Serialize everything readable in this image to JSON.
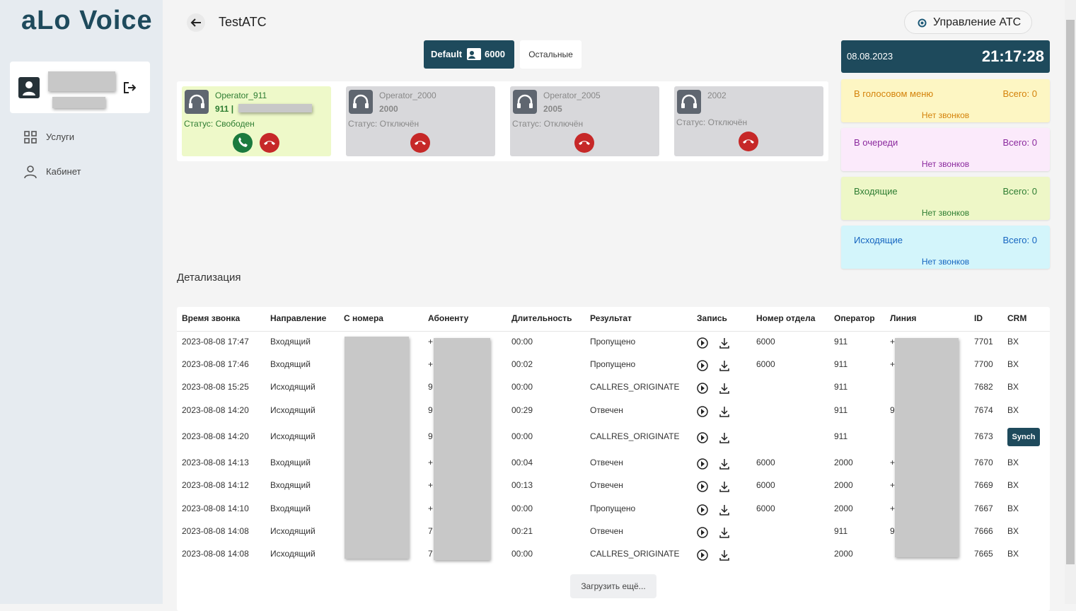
{
  "logo": "aLo Voice",
  "sidebar": {
    "menu": [
      "Услуги",
      "Кабинет"
    ]
  },
  "header": {
    "title": "TestATC",
    "manage_button": "Управление АТС"
  },
  "tabs": {
    "default": "Default",
    "default_count": "6000",
    "other": "Остальные"
  },
  "operators": [
    {
      "name": "Operator_911",
      "ext": "911 |",
      "status": "Статус: Свободен",
      "online": true
    },
    {
      "name": "Operator_2000",
      "ext": "2000",
      "status": "Статус: Отключён",
      "online": false
    },
    {
      "name": "Operator_2005",
      "ext": "2005",
      "status": "Статус: Отключён",
      "online": false
    },
    {
      "name": "2002",
      "ext": null,
      "status": "Статус: Отключён",
      "online": false
    }
  ],
  "clock": {
    "date": "08.08.2023",
    "time": "21:17:28"
  },
  "queues": [
    {
      "label": "В голосовом меню",
      "total": "Всего: 0",
      "empty": "Нет звонков",
      "color": "#d4820a",
      "bg": "#fdf6c3"
    },
    {
      "label": "В очереди",
      "total": "Всего: 0",
      "empty": "Нет звонков",
      "color": "#8b2a9e",
      "bg": "#fbeafb"
    },
    {
      "label": "Входящие",
      "total": "Всего: 0",
      "empty": "Нет звонков",
      "color": "#2e7d32",
      "bg": "#eef7c7"
    },
    {
      "label": "Исходящие",
      "total": "Всего: 0",
      "empty": "Нет звонков",
      "color": "#1565c0",
      "bg": "#d3f5fb"
    }
  ],
  "details": {
    "title": "Детализация",
    "columns": [
      "Время звонка",
      "Направление",
      "С номера",
      "Абоненту",
      "Длительность",
      "Результат",
      "Запись",
      "Номер отдела",
      "Оператор",
      "Линия",
      "ID",
      "CRM"
    ],
    "rows": [
      [
        "2023-08-08 17:47",
        "Входящий",
        null,
        "+",
        "00:00",
        "Пропущено",
        null,
        "6000",
        "911",
        "+",
        "7701",
        "BX"
      ],
      [
        "2023-08-08 17:46",
        "Входящий",
        null,
        "+",
        "00:02",
        "Пропущено",
        null,
        "6000",
        "911",
        "+",
        "7700",
        "BX"
      ],
      [
        "2023-08-08 15:25",
        "Исходящий",
        null,
        "9",
        "00:00",
        "CALLRES_ORIGINATE",
        null,
        null,
        "911",
        null,
        "7682",
        "BX"
      ],
      [
        "2023-08-08 14:20",
        "Исходящий",
        null,
        "9",
        "00:29",
        "Отвечен",
        null,
        null,
        "911",
        "9",
        "7674",
        "BX"
      ],
      [
        "2023-08-08 14:20",
        "Исходящий",
        null,
        "9",
        "00:00",
        "CALLRES_ORIGINATE",
        null,
        null,
        "911",
        null,
        "7673",
        "Synch"
      ],
      [
        "2023-08-08 14:13",
        "Входящий",
        null,
        "+",
        "00:04",
        "Отвечен",
        null,
        "6000",
        "2000",
        "+",
        "7670",
        "BX"
      ],
      [
        "2023-08-08 14:12",
        "Входящий",
        null,
        "+",
        "00:13",
        "Отвечен",
        null,
        "6000",
        "2000",
        "+",
        "7669",
        "BX"
      ],
      [
        "2023-08-08 14:10",
        "Входящий",
        null,
        "+",
        "00:00",
        "Пропущено",
        null,
        "6000",
        "2000",
        "+",
        "7667",
        "BX"
      ],
      [
        "2023-08-08 14:08",
        "Исходящий",
        null,
        "7",
        "00:21",
        "Отвечен",
        null,
        null,
        "911",
        "9",
        "7666",
        "BX"
      ],
      [
        "2023-08-08 14:08",
        "Исходящий",
        null,
        "7",
        "00:00",
        "CALLRES_ORIGINATE",
        null,
        null,
        "2000",
        null,
        "7665",
        "BX"
      ]
    ],
    "load_more": "Загрузить ещё..."
  }
}
